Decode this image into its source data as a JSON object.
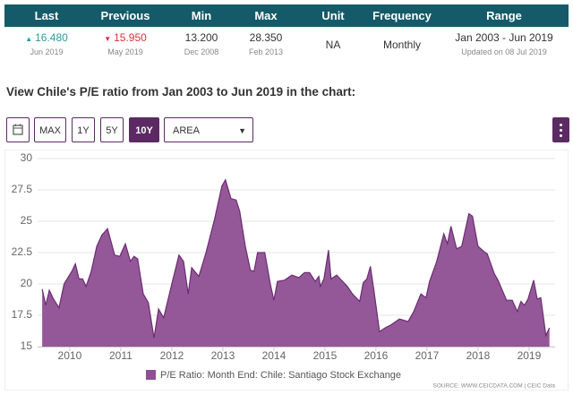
{
  "summary_table": {
    "headers": [
      "Last",
      "Previous",
      "Min",
      "Max",
      "Unit",
      "Frequency",
      "Range"
    ],
    "cells": [
      {
        "value": "16.480",
        "date": "Jun 2019"
      },
      {
        "value": "15.950",
        "date": "May 2019"
      },
      {
        "value": "13.200",
        "date": "Dec 2008"
      },
      {
        "value": "28.350",
        "date": "Feb 2013"
      },
      {
        "value": "NA"
      },
      {
        "value": "Monthly"
      },
      {
        "value": "Jan 2003 - Jun 2019",
        "date": "Updated on 08 Jul 2019"
      }
    ]
  },
  "heading": "View Chile's P/E ratio from Jan 2003 to Jun 2019 in the chart:",
  "controls": {
    "buttons": [
      "MAX",
      "1Y",
      "5Y",
      "10Y"
    ],
    "dropdown": "AREA"
  },
  "chart_data": {
    "type": "area",
    "x": [
      2009.46,
      2009.53,
      2009.6,
      2009.68,
      2009.79,
      2009.89,
      2010.04,
      2010.11,
      2010.18,
      2010.25,
      2010.32,
      2010.42,
      2010.53,
      2010.63,
      2010.74,
      2010.88,
      2010.98,
      2011.09,
      2011.19,
      2011.26,
      2011.33,
      2011.44,
      2011.54,
      2011.65,
      2011.74,
      2011.84,
      2012.0,
      2012.14,
      2012.23,
      2012.32,
      2012.39,
      2012.53,
      2012.67,
      2012.84,
      2012.98,
      2013.05,
      2013.16,
      2013.26,
      2013.33,
      2013.44,
      2013.54,
      2013.61,
      2013.68,
      2013.82,
      2013.93,
      2014.0,
      2014.07,
      2014.21,
      2014.35,
      2014.49,
      2014.6,
      2014.7,
      2014.81,
      2014.88,
      2014.91,
      2014.98,
      2015.07,
      2015.12,
      2015.23,
      2015.44,
      2015.54,
      2015.68,
      2015.75,
      2015.82,
      2015.89,
      2015.96,
      2016.07,
      2016.18,
      2016.28,
      2016.46,
      2016.63,
      2016.74,
      2016.88,
      2016.98,
      2017.05,
      2017.19,
      2017.33,
      2017.4,
      2017.47,
      2017.58,
      2017.68,
      2017.82,
      2017.89,
      2018.0,
      2018.11,
      2018.18,
      2018.32,
      2018.39,
      2018.56,
      2018.67,
      2018.77,
      2018.84,
      2018.91,
      2018.98,
      2019.09,
      2019.16,
      2019.23,
      2019.33,
      2019.4
    ],
    "series": [
      {
        "name": "P/E Ratio: Month End: Chile: Santiago Stock Exchange",
        "color": "#8e4f93",
        "values": [
          19.6,
          18.3,
          19.5,
          18.8,
          18.1,
          20.0,
          21.0,
          21.6,
          20.4,
          20.4,
          19.8,
          21.0,
          23.0,
          23.9,
          24.4,
          22.3,
          22.2,
          23.2,
          21.8,
          22.2,
          22.0,
          19.2,
          18.5,
          15.7,
          18.0,
          17.3,
          20.0,
          22.3,
          21.8,
          19.2,
          21.3,
          20.6,
          22.5,
          25.2,
          27.8,
          28.3,
          26.8,
          26.7,
          25.8,
          23.0,
          21.1,
          21.0,
          22.5,
          22.5,
          20.0,
          18.7,
          20.2,
          20.3,
          20.7,
          20.5,
          20.9,
          20.9,
          20.2,
          20.6,
          19.8,
          20.4,
          22.7,
          20.4,
          20.7,
          19.8,
          19.2,
          18.6,
          20.1,
          20.4,
          21.4,
          19.5,
          16.2,
          16.5,
          16.7,
          17.2,
          17.0,
          17.8,
          19.2,
          18.9,
          20.2,
          21.8,
          24.0,
          23.2,
          24.6,
          22.8,
          23.0,
          25.6,
          25.4,
          23.0,
          22.6,
          22.4,
          20.8,
          20.3,
          18.7,
          18.7,
          17.8,
          18.6,
          18.3,
          18.8,
          20.3,
          18.8,
          18.9,
          15.9,
          16.5
        ]
      }
    ],
    "xlim": [
      2009.37,
      2019.51
    ],
    "xticks": [
      2010,
      2011,
      2012,
      2013,
      2014,
      2015,
      2016,
      2017,
      2018,
      2019
    ],
    "ylim": [
      15,
      30
    ],
    "yticks": [
      15,
      17.5,
      20,
      22.5,
      25,
      27.5,
      30
    ],
    "grid": true,
    "source": "SOURCE: WWW.CEICDATA.COM | CEIC Data"
  }
}
